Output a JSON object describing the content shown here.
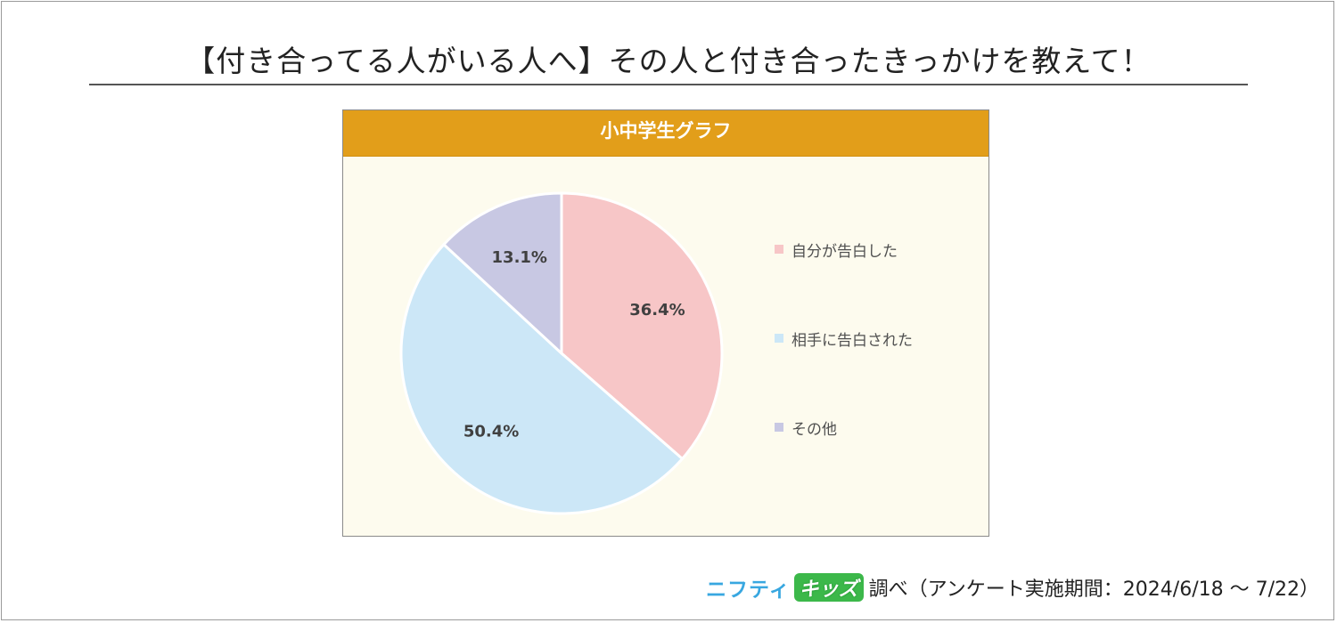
{
  "title": "【付き合ってる人がいる人へ】その人と付き合ったきっかけを教えて！",
  "chart_header": "小中学生グラフ",
  "colors": {
    "header_bg": "#e29e1a",
    "panel_bg": "#fdfbee",
    "kids_logo_bg": "#3cb84a"
  },
  "chart_data": {
    "type": "pie",
    "title": "小中学生グラフ",
    "legend_position": "right",
    "slices": [
      {
        "name": "自分が告白した",
        "value": 36.4,
        "label": "36.4%",
        "color": "#f7c6c7"
      },
      {
        "name": "相手に告白された",
        "value": 50.4,
        "label": "50.4%",
        "color": "#cce7f7"
      },
      {
        "name": "その他",
        "value": 13.1,
        "label": "13.1%",
        "color": "#c8c8e3"
      }
    ]
  },
  "footer": {
    "logo_part1": "ニフティ",
    "logo_part2": "キッズ",
    "text": "調べ（アンケート実施期間：2024/6/18 ～ 7/22）"
  }
}
